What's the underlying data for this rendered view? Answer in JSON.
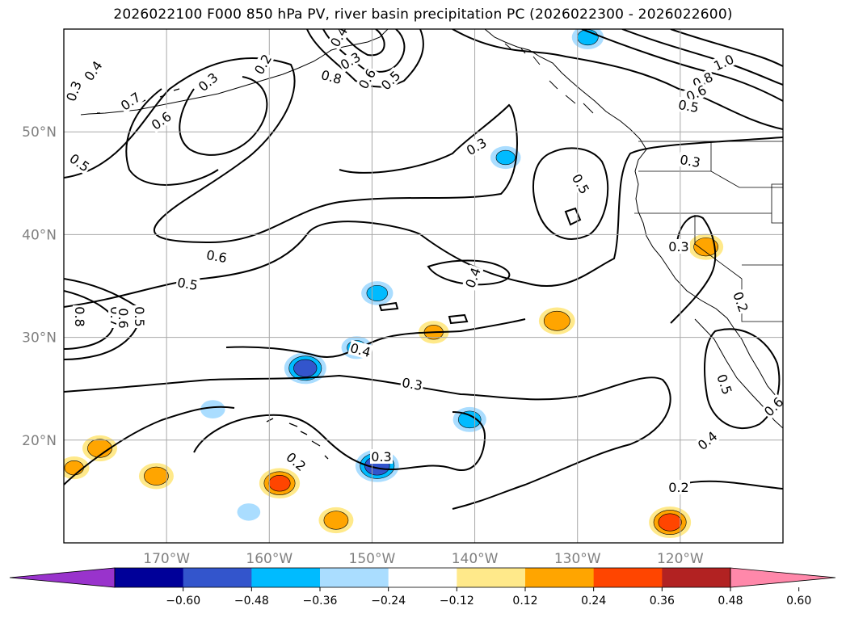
{
  "title": "2026022100 F000 850 hPa PV, river basin precipitation PC (2026022300 - 2026022600)",
  "longitude_labels": [
    "170°W",
    "160°W",
    "150°W",
    "140°W",
    "130°W",
    "120°W"
  ],
  "latitude_labels": [
    "50°N",
    "40°N",
    "30°N",
    "20°N"
  ],
  "colorbar": {
    "colors": [
      "#9933cc",
      "#000099",
      "#3355cc",
      "#00bbff",
      "#aaddff",
      "#ffffff",
      "#ffe98a",
      "#ffa500",
      "#ff4500",
      "#b22222",
      "#ff88aa"
    ],
    "tick_labels": [
      "−0.60",
      "−0.48",
      "−0.36",
      "−0.24",
      "−0.12",
      "0.12",
      "0.24",
      "0.36",
      "0.48",
      "0.60"
    ]
  },
  "contour_labels": [
    "0.3",
    "0.4",
    "0.7",
    "0.6",
    "0.5",
    "0.3",
    "0.2",
    "0.8",
    "0.6",
    "0.5",
    "0.4",
    "0.3",
    "0.3",
    "0.5",
    "1.0",
    "0.8",
    "0.6",
    "0.5",
    "0.3",
    "0.6",
    "0.5",
    "0.8",
    "0.7",
    "0.5",
    "0.6",
    "0.4",
    "0.4",
    "0.3",
    "0.3",
    "0.2",
    "0.3",
    "0.2",
    "0.5",
    "0.6",
    "0.4",
    "0.2"
  ],
  "precip_pc": [
    {
      "lon": -176.5,
      "lat": 19.2,
      "value": 0.3
    },
    {
      "lon": -179,
      "lat": 17.3,
      "value": 0.24
    },
    {
      "lon": -171,
      "lat": 16.5,
      "value": 0.3
    },
    {
      "lon": -159,
      "lat": 15.8,
      "value": 0.38
    },
    {
      "lon": -153.5,
      "lat": 12.2,
      "value": 0.3
    },
    {
      "lon": -132,
      "lat": 31.6,
      "value": 0.32
    },
    {
      "lon": -117.5,
      "lat": 38.8,
      "value": 0.3
    },
    {
      "lon": -121,
      "lat": 12.0,
      "value": 0.4
    },
    {
      "lon": -144,
      "lat": 30.5,
      "value": 0.24
    },
    {
      "lon": -156.5,
      "lat": 27.0,
      "value": -0.4
    },
    {
      "lon": -149.5,
      "lat": 17.5,
      "value": -0.42
    },
    {
      "lon": -140.5,
      "lat": 22.0,
      "value": -0.28
    },
    {
      "lon": -149.5,
      "lat": 34.3,
      "value": -0.26
    },
    {
      "lon": -151.5,
      "lat": 29.0,
      "value": -0.24
    },
    {
      "lon": -129,
      "lat": 59.2,
      "value": -0.26
    },
    {
      "lon": -137,
      "lat": 47.5,
      "value": -0.24
    },
    {
      "lon": -165.5,
      "lat": 23.0,
      "value": -0.16
    },
    {
      "lon": -162,
      "lat": 13.0,
      "value": -0.14
    }
  ]
}
